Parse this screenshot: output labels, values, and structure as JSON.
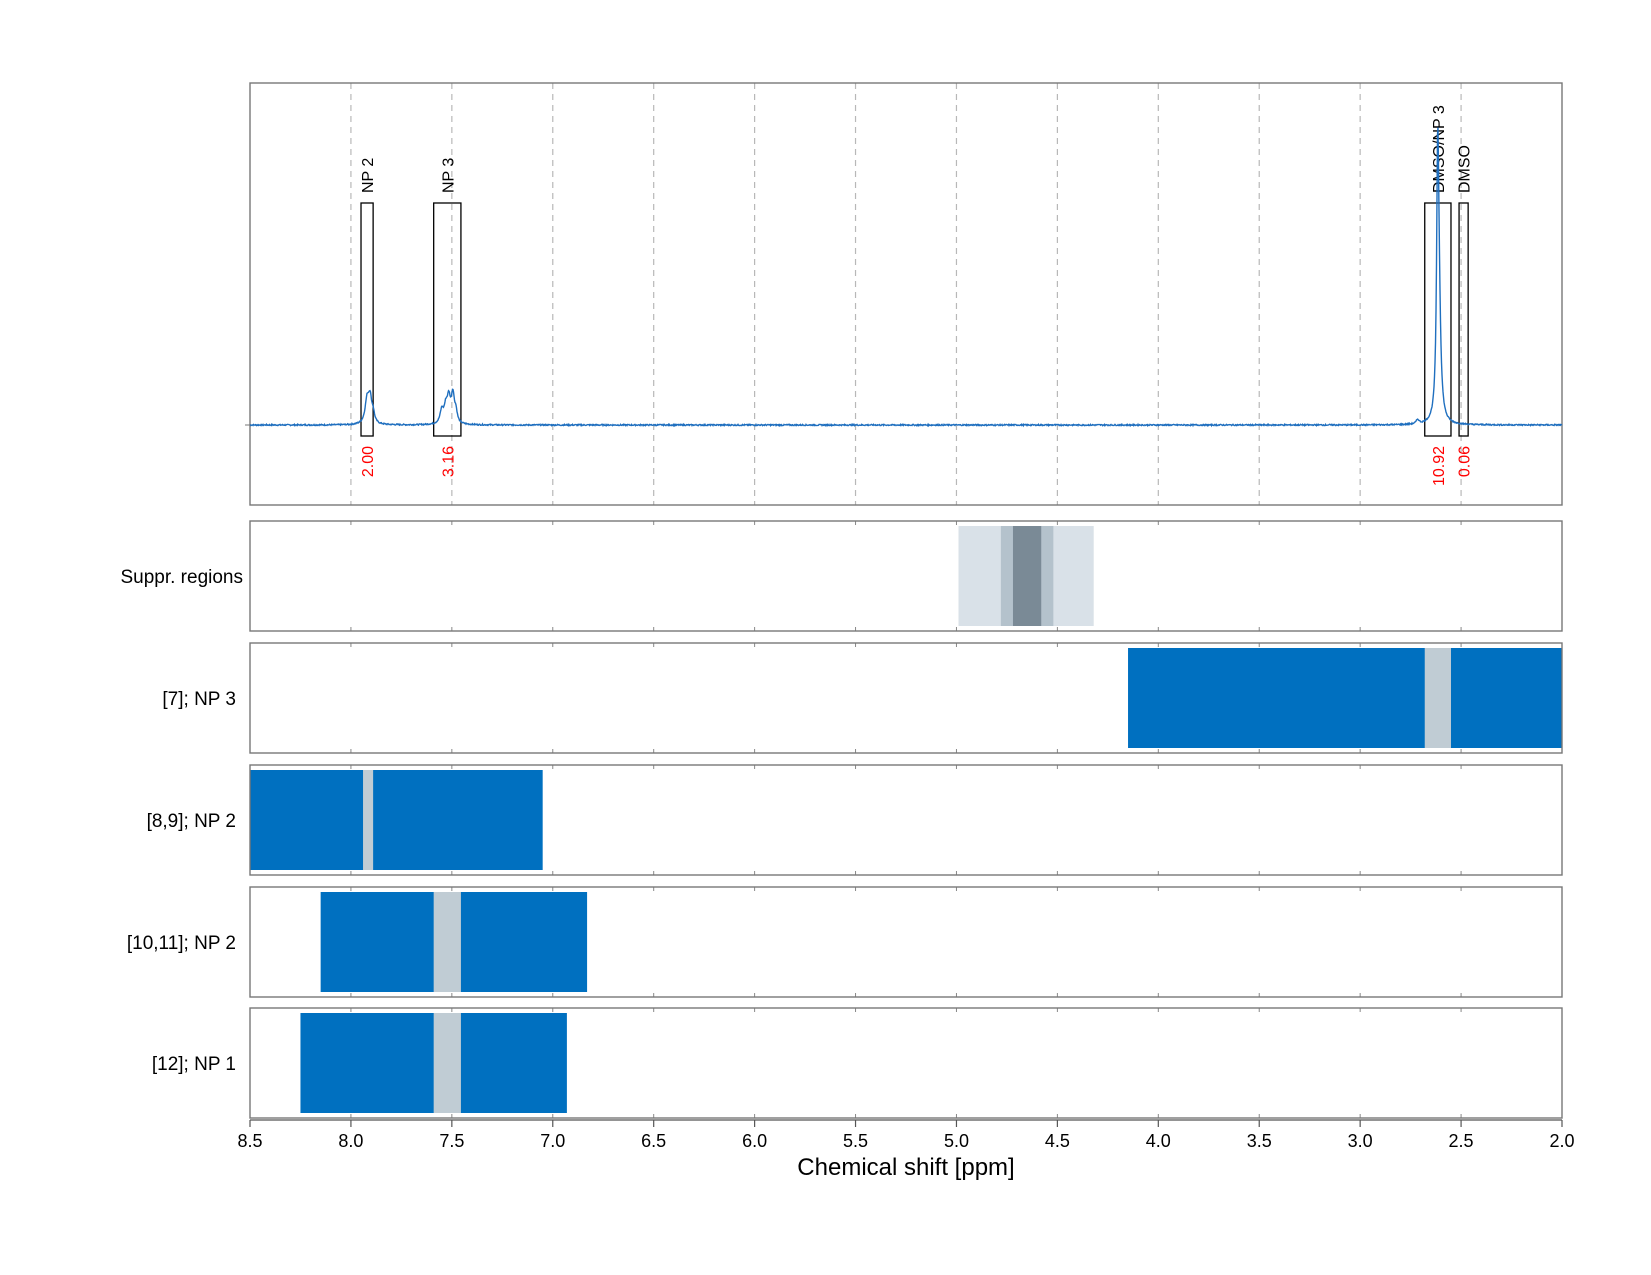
{
  "chart_data": {
    "type": "line",
    "xlabel": "Chemical shift [ppm]",
    "xlim": [
      8.5,
      2.0
    ],
    "x_ticks": [
      "8.5",
      "8.0",
      "7.5",
      "7.0",
      "6.5",
      "6.0",
      "5.5",
      "5.0",
      "4.5",
      "4.0",
      "3.5",
      "3.0",
      "2.5",
      "2.0"
    ],
    "grid": "vertical dashed",
    "spectrum": {
      "baseline": 0,
      "peaks": [
        {
          "x": 7.92,
          "height": 0.11,
          "width": 0.012
        },
        {
          "x": 7.905,
          "height": 0.11,
          "width": 0.01
        },
        {
          "x": 7.89,
          "height": 0.04,
          "width": 0.008
        },
        {
          "x": 7.55,
          "height": 0.06,
          "width": 0.01
        },
        {
          "x": 7.53,
          "height": 0.07,
          "width": 0.01
        },
        {
          "x": 7.515,
          "height": 0.11,
          "width": 0.01
        },
        {
          "x": 7.495,
          "height": 0.13,
          "width": 0.009
        },
        {
          "x": 7.48,
          "height": 0.05,
          "width": 0.008
        },
        {
          "x": 2.616,
          "height": 1.0,
          "width": 0.006
        },
        {
          "x": 2.61,
          "height": 0.55,
          "width": 0.01
        },
        {
          "x": 2.715,
          "height": 0.02,
          "width": 0.008
        }
      ]
    },
    "integration_regions": [
      {
        "label": "NP 2",
        "x_from": 7.95,
        "x_to": 7.89,
        "integral": "2.00"
      },
      {
        "label": "NP 3",
        "x_from": 7.59,
        "x_to": 7.455,
        "integral": "3.16"
      },
      {
        "label": "DMSO/NP 3",
        "x_from": 2.68,
        "x_to": 2.55,
        "integral": "10.92"
      },
      {
        "label": "DMSO",
        "x_from": 2.51,
        "x_to": 2.465,
        "integral": "0.06"
      }
    ],
    "suppression": {
      "label": "Suppr. regions",
      "bands": [
        {
          "x_from": 4.99,
          "x_to": 4.32,
          "level": "light"
        },
        {
          "x_from": 4.78,
          "x_to": 4.52,
          "level": "medium"
        },
        {
          "x_from": 4.72,
          "x_to": 4.58,
          "level": "dark"
        }
      ]
    },
    "multiplet_rows": [
      {
        "label": "[7]; NP 3",
        "x_from": 4.15,
        "x_to": 2.0,
        "gray_from": 2.68,
        "gray_to": 2.55
      },
      {
        "label": "[8,9]; NP 2",
        "x_from": 8.5,
        "x_to": 7.05,
        "gray_from": 7.94,
        "gray_to": 7.89
      },
      {
        "label": "[10,11]; NP 2",
        "x_from": 8.15,
        "x_to": 6.83,
        "gray_from": 7.59,
        "gray_to": 7.455
      },
      {
        "label": "[12]; NP 1",
        "x_from": 8.25,
        "x_to": 6.93,
        "gray_from": 7.59,
        "gray_to": 7.455
      }
    ],
    "colors": {
      "spectrum": "#1f6fbf",
      "blue_band": "#0070c0",
      "gray_band": "#c0ccd4",
      "integral_text": "#ff0000",
      "suppr_light": "#d9e1e8",
      "suppr_medium": "#b4c2cc",
      "suppr_dark": "#7a8a96"
    }
  }
}
